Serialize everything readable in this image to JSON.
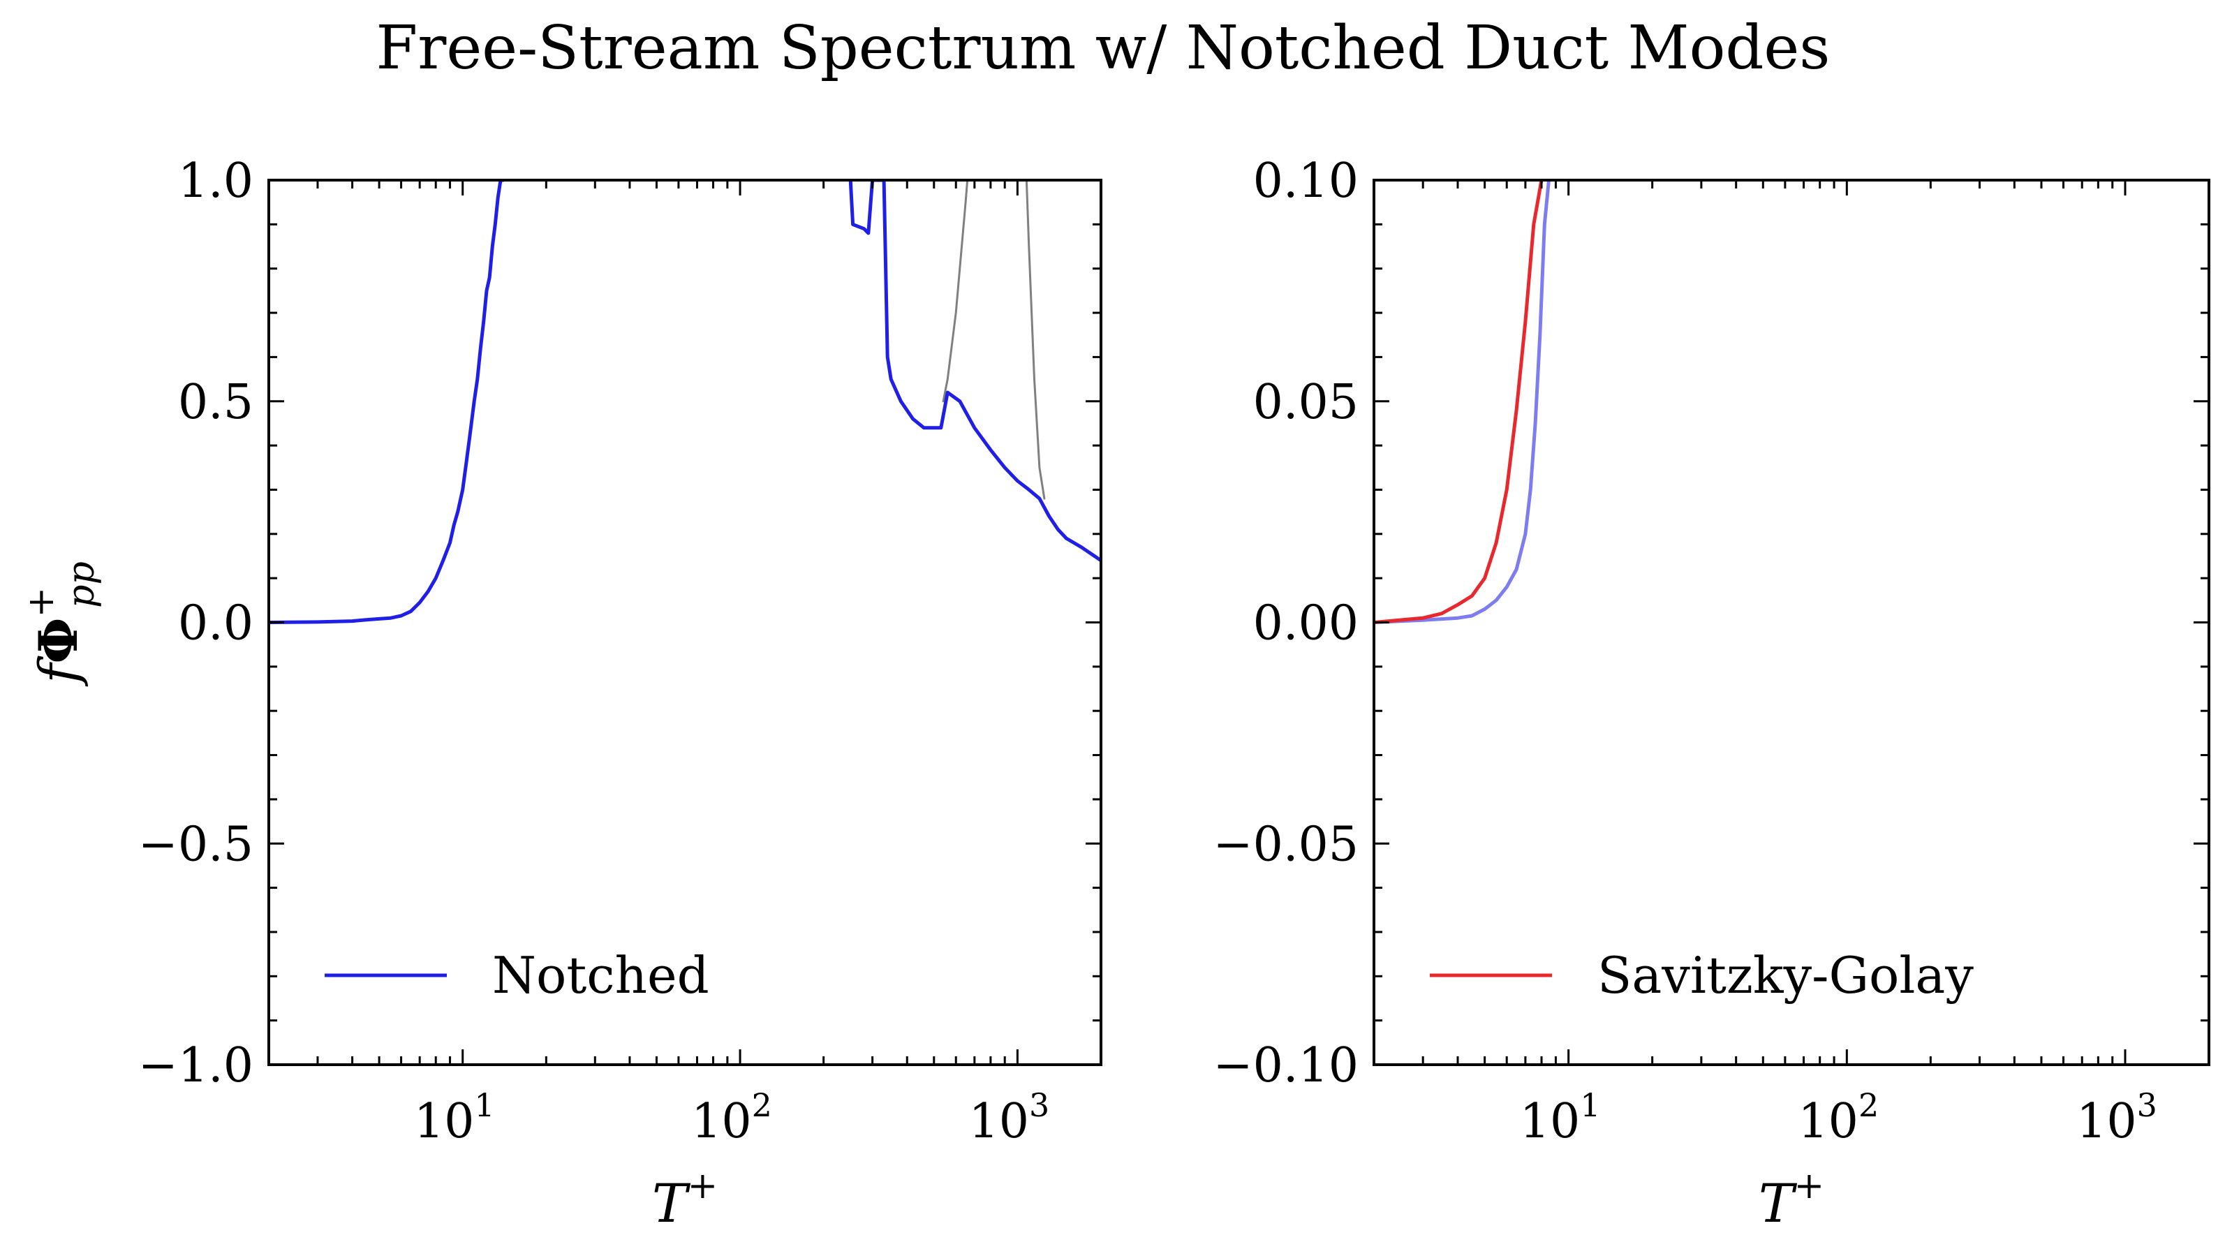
{
  "title": "Free-Stream Spectrum w/ Notched Duct Modes",
  "chart_data": [
    {
      "type": "line",
      "panel": "left",
      "xscale": "log",
      "xlim": [
        2,
        2000
      ],
      "ylim": [
        -1.0,
        1.0
      ],
      "xlabel": {
        "base": "T",
        "sup": "+"
      },
      "ylabel": {
        "f": "f",
        "phi": "Φ",
        "sup": "+",
        "sub": "pp"
      },
      "yticks": [
        -1.0,
        -0.5,
        0.0,
        0.5,
        1.0
      ],
      "ytick_labels": [
        "−1.0",
        "−0.5",
        "0.0",
        "0.5",
        "1.0"
      ],
      "xticks": [
        10,
        100,
        1000
      ],
      "xtick_labels": [
        {
          "base": "10",
          "exp": "1"
        },
        {
          "base": "10",
          "exp": "2"
        },
        {
          "base": "10",
          "exp": "3"
        }
      ],
      "legend": {
        "position": "lower-left",
        "entries": [
          {
            "label": "Notched",
            "color": "#1f1fe8"
          }
        ]
      },
      "series": [
        {
          "role": "raw-reference",
          "color": "#808080",
          "x": [
            540,
            560,
            600,
            650,
            700,
            1050,
            1100,
            1150,
            1200,
            1250
          ],
          "y": [
            0.5,
            0.55,
            0.7,
            0.95,
            1.2,
            1.2,
            0.85,
            0.55,
            0.35,
            0.28
          ]
        },
        {
          "name": "Notched",
          "color": "#1f1fe8",
          "segments": [
            {
              "x": [
                2,
                3,
                4,
                4.5,
                5,
                5.5,
                6,
                6.5,
                7,
                7.5,
                8,
                8.5,
                9,
                9.3,
                9.6,
                10,
                10.3,
                10.6,
                11,
                11.3,
                11.6,
                11.9,
                12.2,
                12.5,
                12.8,
                13.1,
                13.4,
                13.7,
                14
              ],
              "y": [
                0.0,
                0.001,
                0.003,
                0.006,
                0.008,
                0.01,
                0.015,
                0.025,
                0.045,
                0.07,
                0.1,
                0.14,
                0.18,
                0.22,
                0.25,
                0.3,
                0.36,
                0.42,
                0.5,
                0.55,
                0.62,
                0.68,
                0.75,
                0.78,
                0.85,
                0.9,
                0.96,
                1.0,
                1.0
              ]
            },
            {
              "x": [
                250,
                255,
                280,
                290,
                300,
                310,
                330,
                340,
                350,
                380,
                420,
                460,
                500,
                530,
                560,
                620,
                700,
                800,
                900,
                1000,
                1100,
                1200,
                1300,
                1400,
                1500,
                1700,
                2000
              ],
              "y": [
                1.0,
                0.9,
                0.89,
                0.88,
                1.0,
                1.0,
                1.0,
                0.6,
                0.55,
                0.5,
                0.46,
                0.44,
                0.44,
                0.44,
                0.52,
                0.5,
                0.44,
                0.39,
                0.35,
                0.32,
                0.3,
                0.28,
                0.24,
                0.21,
                0.19,
                0.17,
                0.14
              ]
            }
          ]
        }
      ]
    },
    {
      "type": "line",
      "panel": "right",
      "xscale": "log",
      "xlim": [
        2,
        2000
      ],
      "ylim": [
        -0.1,
        0.1
      ],
      "xlabel": {
        "base": "T",
        "sup": "+"
      },
      "yticks": [
        -0.1,
        -0.05,
        0.0,
        0.05,
        0.1
      ],
      "ytick_labels": [
        "−0.10",
        "−0.05",
        "0.00",
        "0.05",
        "0.10"
      ],
      "xticks": [
        10,
        100,
        1000
      ],
      "xtick_labels": [
        {
          "base": "10",
          "exp": "1"
        },
        {
          "base": "10",
          "exp": "2"
        },
        {
          "base": "10",
          "exp": "3"
        }
      ],
      "legend": {
        "position": "lower-left",
        "entries": [
          {
            "label": "Savitzky-Golay",
            "color": "#e8282c"
          }
        ]
      },
      "series": [
        {
          "role": "notched-faded",
          "color": "#7d7df0",
          "x": [
            2,
            3,
            4,
            4.5,
            5,
            5.5,
            6,
            6.5,
            7,
            7.3,
            7.6,
            7.9,
            8.2,
            8.5
          ],
          "y": [
            0.0,
            0.0005,
            0.001,
            0.0015,
            0.003,
            0.005,
            0.008,
            0.012,
            0.02,
            0.03,
            0.045,
            0.065,
            0.09,
            0.1
          ]
        },
        {
          "name": "Savitzky-Golay",
          "color": "#e8282c",
          "x": [
            2,
            3,
            3.5,
            4,
            4.5,
            5,
            5.5,
            6,
            6.5,
            7,
            7.5,
            8
          ],
          "y": [
            0.0,
            0.001,
            0.002,
            0.004,
            0.006,
            0.01,
            0.018,
            0.03,
            0.048,
            0.068,
            0.09,
            0.1
          ]
        }
      ]
    }
  ]
}
